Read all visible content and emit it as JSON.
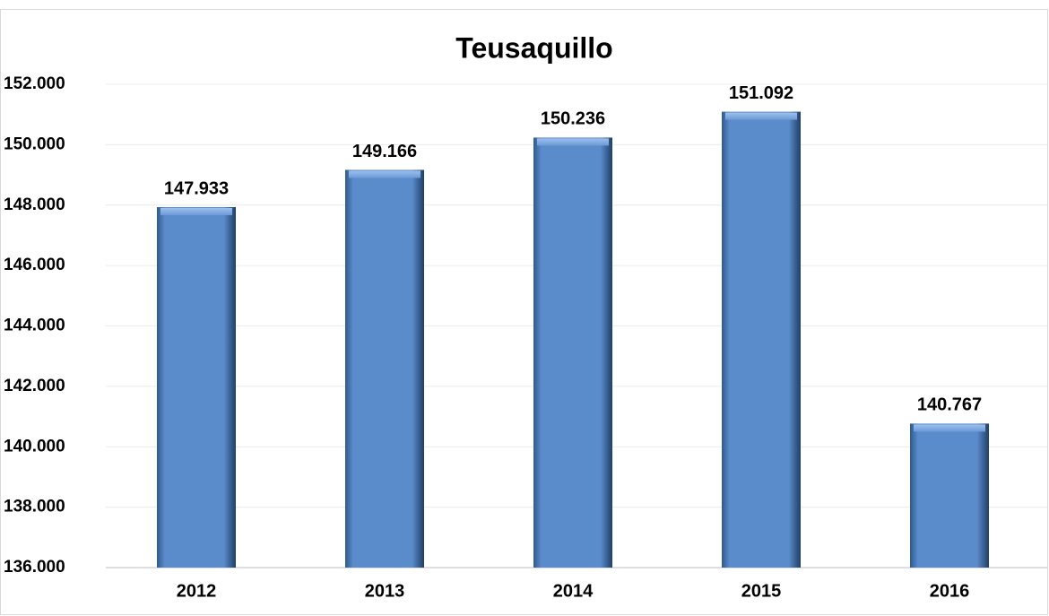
{
  "chart_data": {
    "type": "bar",
    "title": "Teusaquillo",
    "categories": [
      "2012",
      "2013",
      "2014",
      "2015",
      "2016"
    ],
    "values": [
      147933,
      149166,
      150236,
      151092,
      140767
    ],
    "value_labels": [
      "147.933",
      "149.166",
      "150.236",
      "151.092",
      "140.767"
    ],
    "color": "#4f81bd",
    "ylim": [
      136000,
      152000
    ],
    "yticks": [
      {
        "value": 136000,
        "label": "136.000"
      },
      {
        "value": 138000,
        "label": "138.000"
      },
      {
        "value": 140000,
        "label": "140.000"
      },
      {
        "value": 142000,
        "label": "142.000"
      },
      {
        "value": 144000,
        "label": "144.000"
      },
      {
        "value": 146000,
        "label": "146.000"
      },
      {
        "value": 148000,
        "label": "148.000"
      },
      {
        "value": 150000,
        "label": "150.000"
      },
      {
        "value": 152000,
        "label": "152.000"
      }
    ],
    "grid": true
  }
}
